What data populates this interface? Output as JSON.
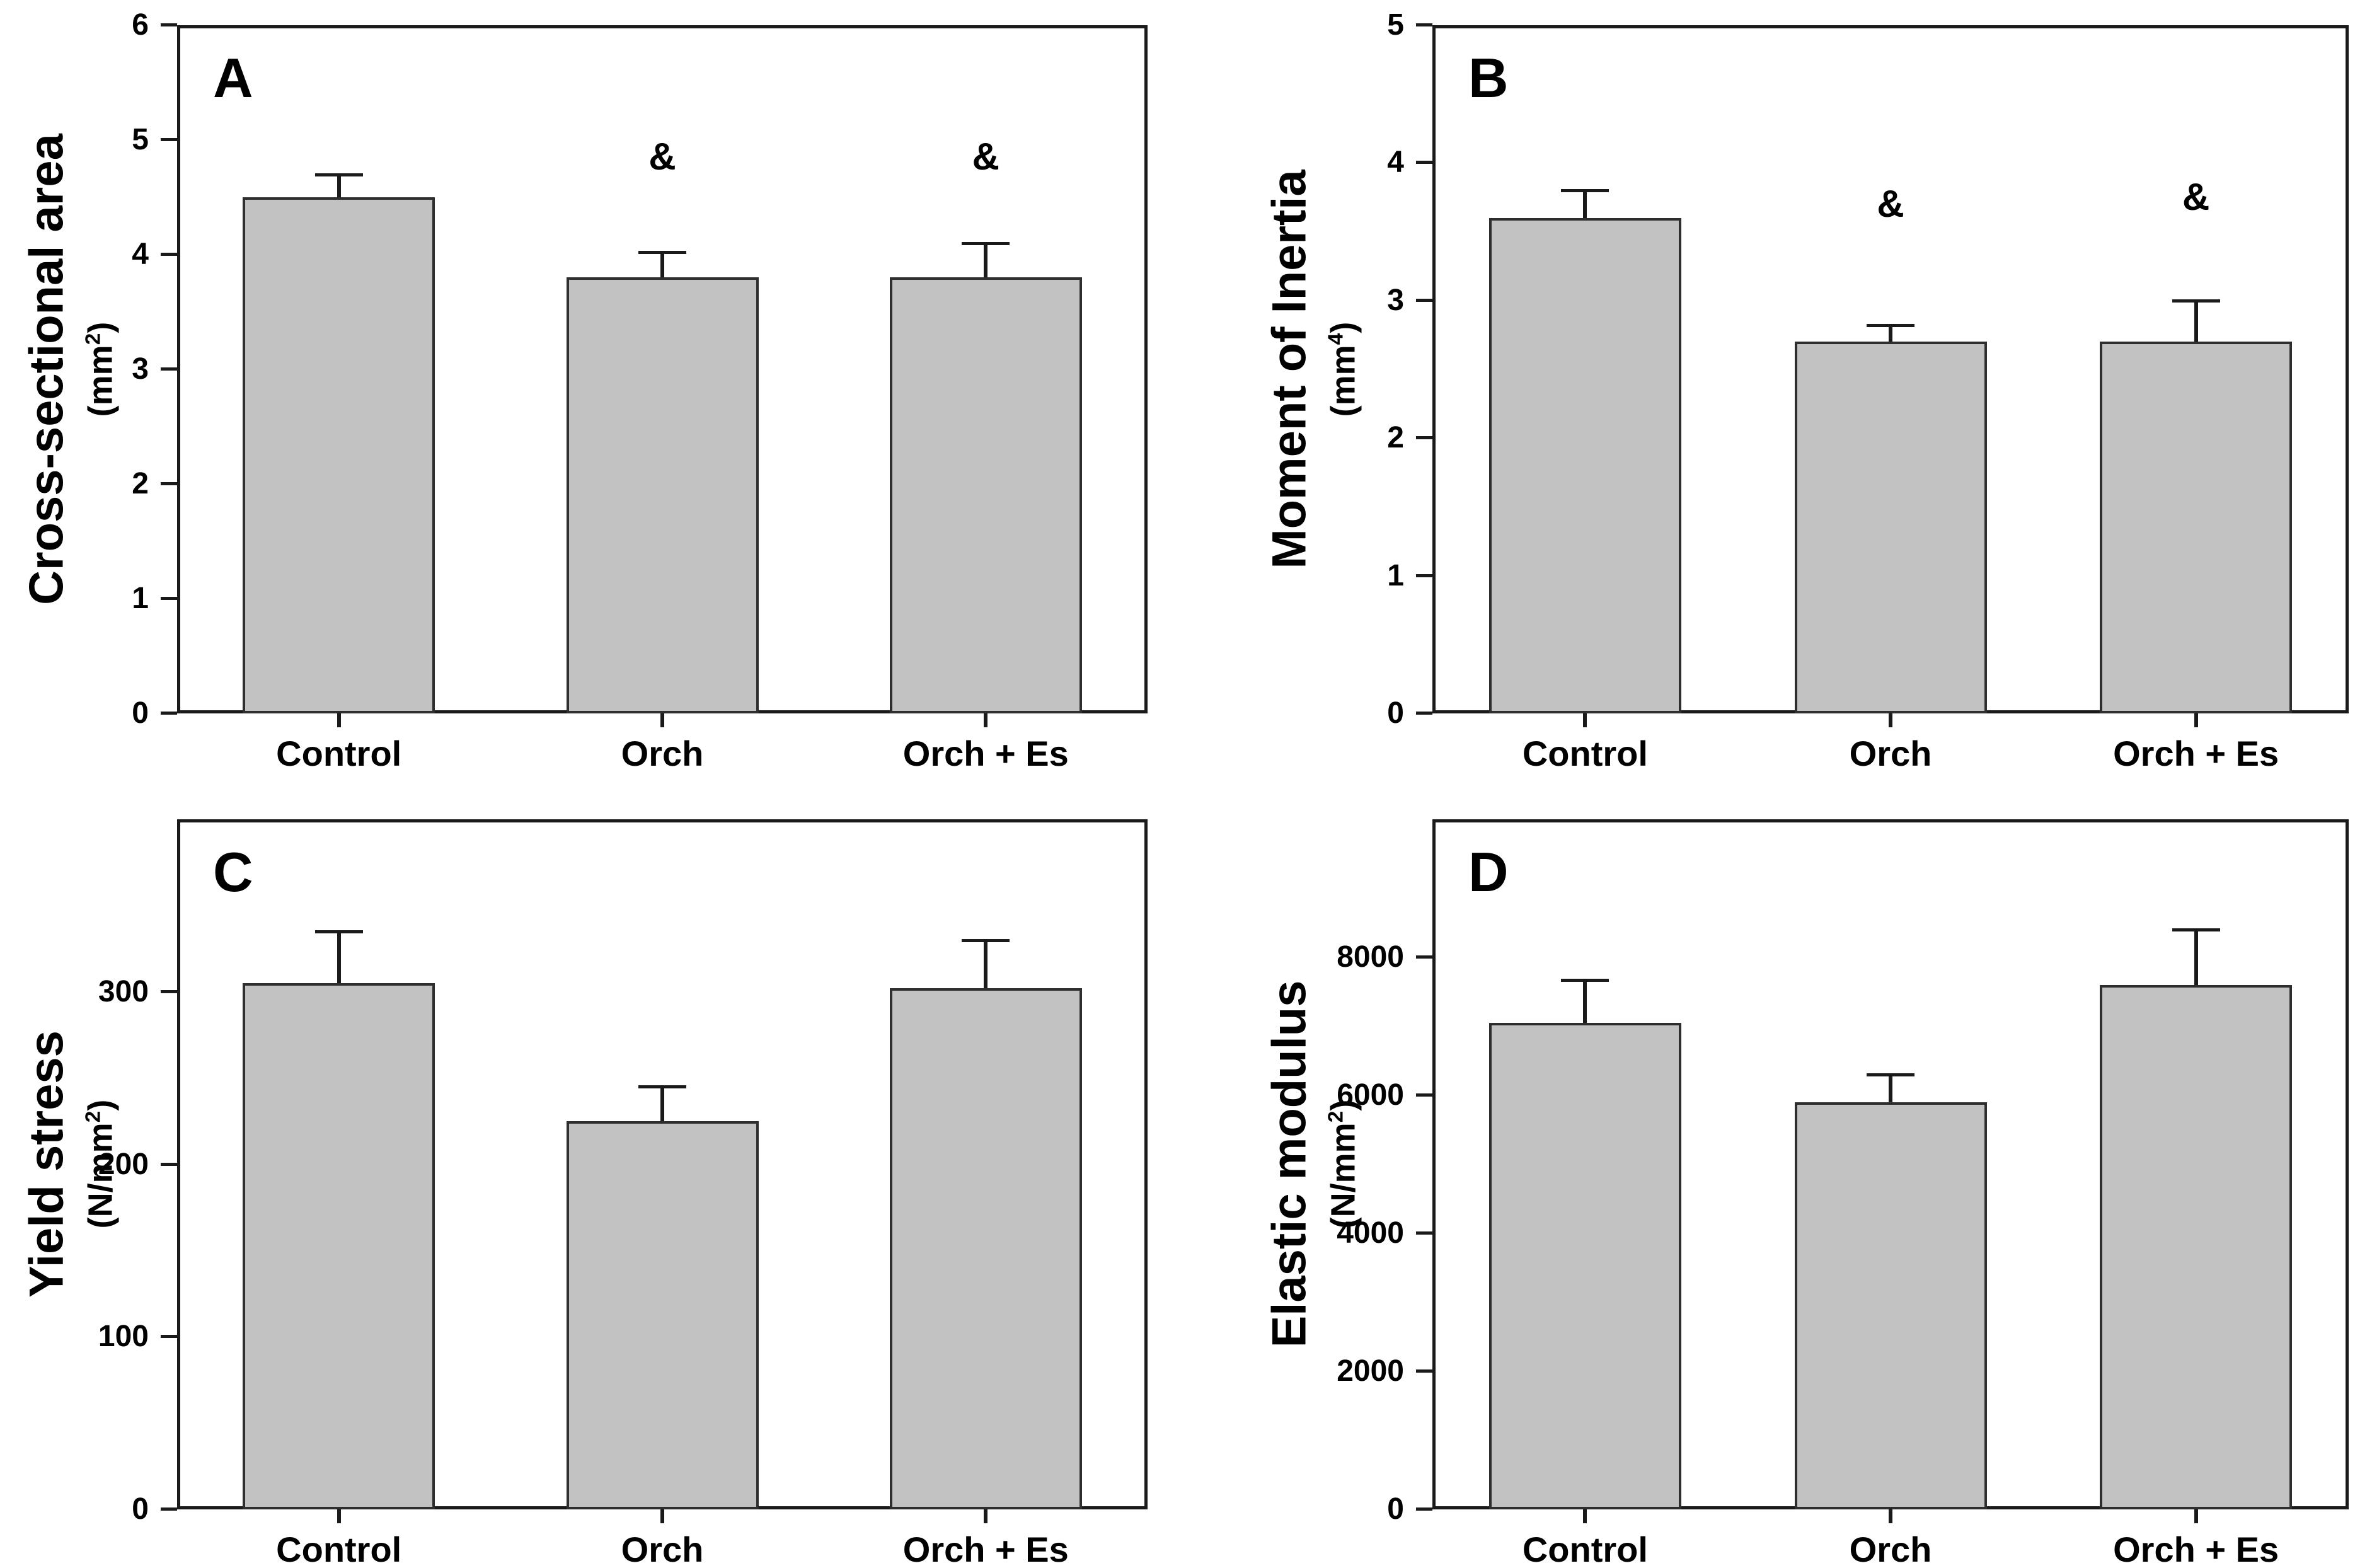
{
  "figure": {
    "background_color": "#ffffff",
    "bar_fill_color": "#c2c2c2",
    "bar_border_color": "#2e2e2e",
    "axis_color": "#1a1a1a",
    "text_color": "#000000"
  },
  "chart_data": [
    {
      "type": "bar",
      "panel_label": "A",
      "ylabel": "Cross-sectional area",
      "unit_prefix": "(mm",
      "unit_sup": "2",
      "unit_suffix": ")",
      "categories": [
        "Control",
        "Orch",
        "Orch + Es"
      ],
      "values": [
        4.5,
        3.8,
        3.8
      ],
      "errors": [
        0.2,
        0.22,
        0.3
      ],
      "significance": [
        "",
        "&",
        "&"
      ],
      "sig_y": [
        null,
        4.85,
        4.85
      ],
      "ylim": [
        0,
        6
      ],
      "yticks": [
        0,
        1,
        2,
        3,
        4,
        5,
        6
      ],
      "grid": false,
      "legend": "none"
    },
    {
      "type": "bar",
      "panel_label": "B",
      "ylabel": "Moment of Inertia",
      "unit_prefix": "(mm",
      "unit_sup": "4",
      "unit_suffix": ")",
      "categories": [
        "Control",
        "Orch",
        "Orch + Es"
      ],
      "values": [
        3.6,
        2.7,
        2.7
      ],
      "errors": [
        0.2,
        0.12,
        0.3
      ],
      "significance": [
        "",
        "&",
        "&"
      ],
      "sig_y": [
        null,
        3.7,
        3.75
      ],
      "ylim": [
        0,
        5
      ],
      "yticks": [
        0,
        1,
        2,
        3,
        4,
        5
      ],
      "grid": false,
      "legend": "none"
    },
    {
      "type": "bar",
      "panel_label": "C",
      "ylabel": "Yield stress",
      "unit_prefix": "(N/mm",
      "unit_sup": "2",
      "unit_suffix": ")",
      "categories": [
        "Control",
        "Orch",
        "Orch + Es"
      ],
      "values": [
        305,
        225,
        302
      ],
      "errors": [
        30,
        20,
        28
      ],
      "significance": [
        "",
        "",
        ""
      ],
      "sig_y": [
        null,
        null,
        null
      ],
      "ylim": [
        0,
        400
      ],
      "yticks": [
        0,
        100,
        200,
        300
      ],
      "grid": false,
      "legend": "none"
    },
    {
      "type": "bar",
      "panel_label": "D",
      "ylabel": "Elastic modulus",
      "unit_prefix": "(N/mm",
      "unit_sup": "2",
      "unit_suffix": ")",
      "categories": [
        "Control",
        "Orch",
        "Orch + Es"
      ],
      "values": [
        7050,
        5900,
        7600
      ],
      "errors": [
        620,
        400,
        800
      ],
      "significance": [
        "",
        "",
        ""
      ],
      "sig_y": [
        null,
        null,
        null
      ],
      "ylim": [
        0,
        10000
      ],
      "yticks": [
        0,
        2000,
        4000,
        6000,
        8000
      ],
      "grid": false,
      "legend": "none"
    }
  ]
}
